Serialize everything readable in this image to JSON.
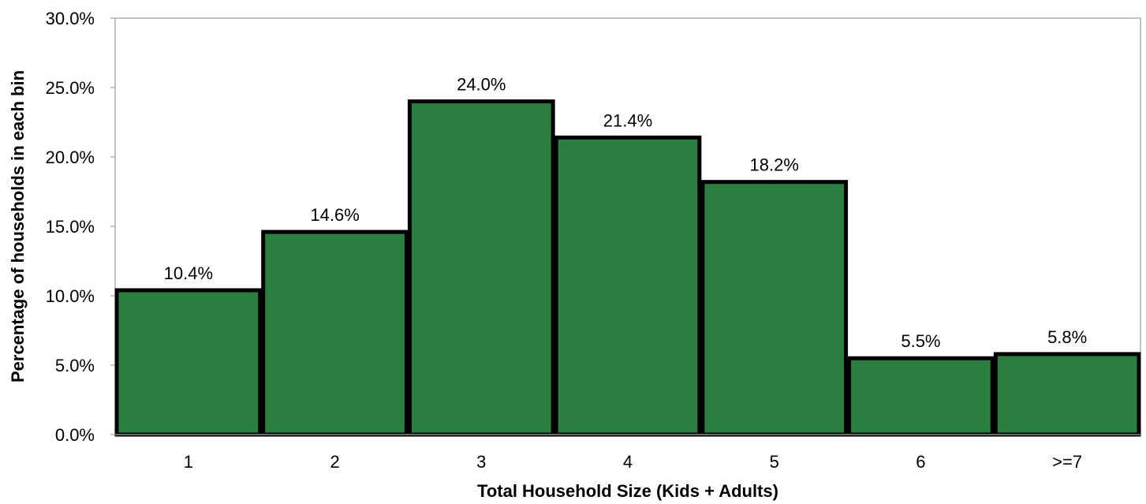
{
  "chart_data": {
    "type": "bar",
    "title": "",
    "xlabel": "Total Household Size (Kids  + Adults)",
    "ylabel": "Percentage of households in each bin",
    "categories": [
      "1",
      "2",
      "3",
      "4",
      "5",
      "6",
      ">=7"
    ],
    "values": [
      10.4,
      14.6,
      24.0,
      21.4,
      18.2,
      5.5,
      5.8
    ],
    "data_labels": [
      "10.4%",
      "14.6%",
      "24.0%",
      "21.4%",
      "18.2%",
      "5.5%",
      "5.8%"
    ],
    "ylim": [
      0,
      30
    ],
    "yticks": [
      0,
      5,
      10,
      15,
      20,
      25,
      30
    ],
    "ytick_labels": [
      "0.0%",
      "5.0%",
      "10.0%",
      "15.0%",
      "20.0%",
      "25.0%",
      "30.0%"
    ],
    "grid": false,
    "legend": "none",
    "colors": {
      "bar_fill": "#2a7f40",
      "bar_stroke": "#000000",
      "axis": "#888888"
    }
  }
}
